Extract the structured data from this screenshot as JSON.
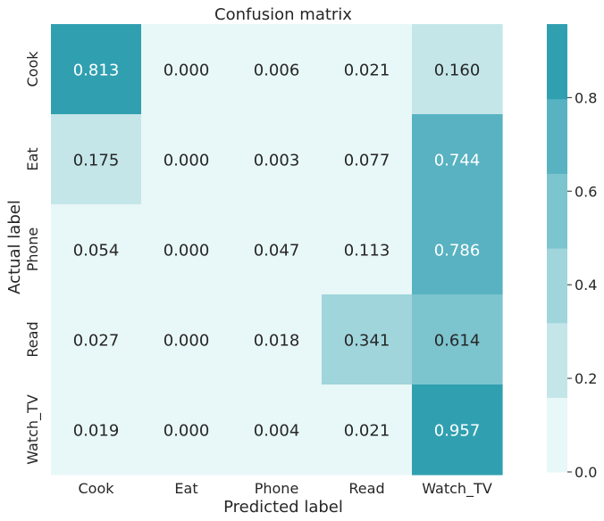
{
  "chart_data": {
    "type": "heatmap",
    "title": "Confusion matrix",
    "xlabel": "Predicted label",
    "ylabel": "Actual label",
    "x_categories": [
      "Cook",
      "Eat",
      "Phone",
      "Read",
      "Watch_TV"
    ],
    "y_categories": [
      "Cook",
      "Eat",
      "Phone",
      "Read",
      "Watch_TV"
    ],
    "values": [
      [
        0.813,
        0.0,
        0.006,
        0.021,
        0.16
      ],
      [
        0.175,
        0.0,
        0.003,
        0.077,
        0.744
      ],
      [
        0.054,
        0.0,
        0.047,
        0.113,
        0.786
      ],
      [
        0.027,
        0.0,
        0.018,
        0.341,
        0.614
      ],
      [
        0.019,
        0.0,
        0.004,
        0.021,
        0.957
      ]
    ],
    "value_format": "0.000",
    "colorbar": {
      "range": [
        0,
        0.957
      ],
      "ticks": [
        0.0,
        0.2,
        0.4,
        0.6,
        0.8
      ],
      "tick_labels": [
        "0.0",
        "0.2",
        "0.4",
        "0.6",
        "0.8"
      ],
      "bins": 6,
      "colors": [
        "#e8f7f7",
        "#c4e6e9",
        "#a0d5dc",
        "#7cc4ce",
        "#58b2c1",
        "#30a0b0"
      ]
    },
    "annotation_colors": {
      "light_cell_text": "#262626",
      "dark_cell_text": "#ffffff"
    },
    "grid": false
  }
}
